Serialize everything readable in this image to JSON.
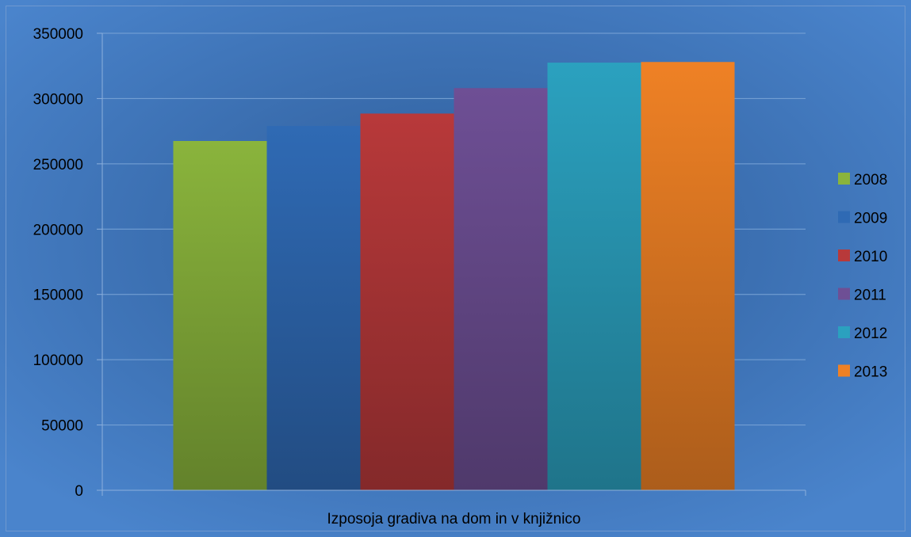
{
  "chart_data": {
    "type": "bar",
    "categories": [
      "Izposoja gradiva na dom in v knjižnico"
    ],
    "series": [
      {
        "name": "2008",
        "values": [
          267500
        ],
        "color": "#8ab43c"
      },
      {
        "name": "2009",
        "values": [
          279000
        ],
        "color": "#2f6ab4"
      },
      {
        "name": "2010",
        "values": [
          288500
        ],
        "color": "#b8393a"
      },
      {
        "name": "2011",
        "values": [
          308000
        ],
        "color": "#6e4f95"
      },
      {
        "name": "2012",
        "values": [
          327500
        ],
        "color": "#2ba1bf"
      },
      {
        "name": "2013",
        "values": [
          328000
        ],
        "color": "#ef8125"
      }
    ],
    "yticks": [
      "350000",
      "300000",
      "250000",
      "200000",
      "150000",
      "100000",
      "50000",
      "0"
    ],
    "ylim": [
      0,
      350000
    ],
    "title": "",
    "xlabel": "",
    "ylabel": "",
    "grid": true,
    "legend_position": "right",
    "colors": {
      "background": "#3f76bf",
      "gridline": "#7aa4d6",
      "axis": "#8db0dc"
    }
  }
}
